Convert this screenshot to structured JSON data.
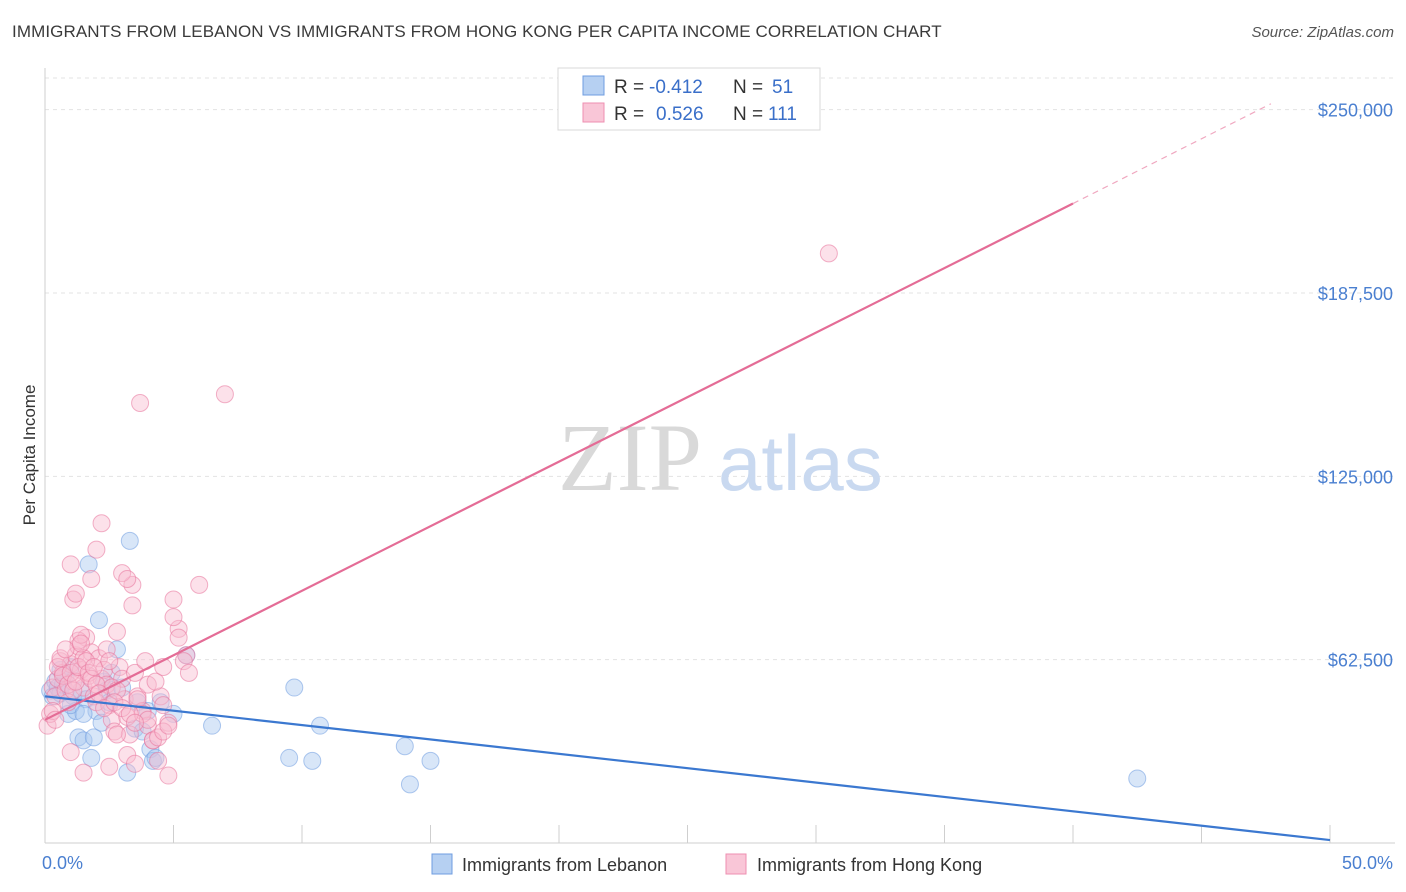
{
  "title": "IMMIGRANTS FROM LEBANON VS IMMIGRANTS FROM HONG KONG PER CAPITA INCOME CORRELATION CHART",
  "source": "Source: ZipAtlas.com",
  "watermark": {
    "zip": "ZIP",
    "atlas": "atlas"
  },
  "legend_top": [
    {
      "r_label": "R =",
      "r_value": "-0.412",
      "n_label": "N =",
      "n_value": "51",
      "color": "#a9c8f0",
      "border": "#6f9de0"
    },
    {
      "r_label": "R =",
      "r_value": "0.526",
      "n_label": "N =",
      "n_value": "111",
      "color": "#f8bcd0",
      "border": "#ee8fb0"
    }
  ],
  "chart_data": {
    "type": "scatter",
    "xlabel": "",
    "ylabel": "Per Capita Income",
    "xlim": [
      0,
      50
    ],
    "ylim": [
      0,
      262500
    ],
    "x_tick_labels": [
      "0.0%",
      "50.0%"
    ],
    "y_ticks": [
      62500,
      125000,
      187500,
      250000
    ],
    "y_tick_labels": [
      "$62,500",
      "$125,000",
      "$187,500",
      "$250,000"
    ],
    "grid": true,
    "series": [
      {
        "name": "Immigrants from Lebanon",
        "color": "#6f9de0",
        "fill": "#a9c8f0",
        "trend": {
          "x": [
            0,
            50
          ],
          "y": [
            50000,
            1000
          ]
        },
        "points": [
          [
            0.2,
            52000
          ],
          [
            0.3,
            50000
          ],
          [
            0.4,
            55000
          ],
          [
            0.5,
            53000
          ],
          [
            0.6,
            51000
          ],
          [
            0.7,
            54000
          ],
          [
            0.8,
            57000
          ],
          [
            0.9,
            44000
          ],
          [
            1.0,
            60000
          ],
          [
            1.1,
            50000
          ],
          [
            1.2,
            45000
          ],
          [
            1.3,
            36000
          ],
          [
            1.4,
            52000
          ],
          [
            1.5,
            35000
          ],
          [
            1.6,
            49000
          ],
          [
            1.7,
            95000
          ],
          [
            1.8,
            29000
          ],
          [
            1.9,
            36000
          ],
          [
            2.0,
            45000
          ],
          [
            2.1,
            76000
          ],
          [
            2.2,
            41000
          ],
          [
            2.3,
            55000
          ],
          [
            2.4,
            52000
          ],
          [
            2.5,
            48000
          ],
          [
            2.8,
            66000
          ],
          [
            3.0,
            53000
          ],
          [
            3.2,
            24000
          ],
          [
            3.3,
            103000
          ],
          [
            3.5,
            39000
          ],
          [
            3.6,
            48000
          ],
          [
            4.0,
            45000
          ],
          [
            4.1,
            32000
          ],
          [
            4.2,
            28000
          ],
          [
            4.3,
            29000
          ],
          [
            4.5,
            48000
          ],
          [
            5.0,
            44000
          ],
          [
            5.5,
            64000
          ],
          [
            6.5,
            40000
          ],
          [
            9.5,
            29000
          ],
          [
            9.7,
            53000
          ],
          [
            10.4,
            28000
          ],
          [
            10.7,
            40000
          ],
          [
            14.0,
            33000
          ],
          [
            14.2,
            20000
          ],
          [
            15.0,
            28000
          ],
          [
            42.5,
            22000
          ],
          [
            0.6,
            59000
          ],
          [
            1.0,
            47000
          ],
          [
            1.5,
            44000
          ],
          [
            2.6,
            58000
          ],
          [
            3.8,
            38000
          ]
        ]
      },
      {
        "name": "Immigrants from Hong Kong",
        "color": "#e8739a",
        "fill": "#f8bcd0",
        "trend": {
          "x": [
            0,
            40
          ],
          "y": [
            42000,
            218000
          ]
        },
        "trend_dashed": {
          "x": [
            40,
            47.7
          ],
          "y": [
            218000,
            252000
          ]
        },
        "points": [
          [
            0.1,
            40000
          ],
          [
            0.2,
            44000
          ],
          [
            0.3,
            53000
          ],
          [
            0.4,
            50000
          ],
          [
            0.5,
            56000
          ],
          [
            0.6,
            62000
          ],
          [
            0.7,
            58000
          ],
          [
            0.8,
            52000
          ],
          [
            0.9,
            48000
          ],
          [
            1.0,
            61000
          ],
          [
            1.1,
            55000
          ],
          [
            1.2,
            64000
          ],
          [
            1.3,
            67000
          ],
          [
            1.4,
            59000
          ],
          [
            1.5,
            53000
          ],
          [
            1.6,
            70000
          ],
          [
            1.7,
            57000
          ],
          [
            1.8,
            65000
          ],
          [
            1.9,
            50000
          ],
          [
            2.0,
            48000
          ],
          [
            2.1,
            63000
          ],
          [
            2.2,
            56000
          ],
          [
            2.3,
            59000
          ],
          [
            2.4,
            54000
          ],
          [
            2.5,
            47000
          ],
          [
            2.6,
            42000
          ],
          [
            2.7,
            38000
          ],
          [
            2.8,
            72000
          ],
          [
            2.9,
            60000
          ],
          [
            3.0,
            56000
          ],
          [
            3.1,
            49000
          ],
          [
            3.2,
            43000
          ],
          [
            3.3,
            37000
          ],
          [
            3.4,
            88000
          ],
          [
            3.5,
            58000
          ],
          [
            3.6,
            50000
          ],
          [
            3.7,
            150000
          ],
          [
            3.8,
            45000
          ],
          [
            3.9,
            62000
          ],
          [
            4.0,
            40000
          ],
          [
            4.2,
            35000
          ],
          [
            4.4,
            28000
          ],
          [
            4.5,
            50000
          ],
          [
            4.6,
            47000
          ],
          [
            4.8,
            41000
          ],
          [
            5.0,
            83000
          ],
          [
            5.2,
            73000
          ],
          [
            5.5,
            64000
          ],
          [
            6.0,
            88000
          ],
          [
            7.0,
            153000
          ],
          [
            1.0,
            95000
          ],
          [
            1.1,
            83000
          ],
          [
            1.2,
            85000
          ],
          [
            1.3,
            69000
          ],
          [
            1.4,
            71000
          ],
          [
            1.5,
            63000
          ],
          [
            1.8,
            90000
          ],
          [
            2.0,
            100000
          ],
          [
            2.2,
            109000
          ],
          [
            2.4,
            66000
          ],
          [
            2.6,
            53000
          ],
          [
            2.8,
            52000
          ],
          [
            3.0,
            92000
          ],
          [
            3.2,
            90000
          ],
          [
            3.4,
            81000
          ],
          [
            3.6,
            49000
          ],
          [
            3.8,
            44000
          ],
          [
            4.0,
            42000
          ],
          [
            4.2,
            35000
          ],
          [
            4.4,
            36000
          ],
          [
            4.6,
            38000
          ],
          [
            4.8,
            40000
          ],
          [
            5.0,
            77000
          ],
          [
            5.2,
            70000
          ],
          [
            5.4,
            62000
          ],
          [
            5.6,
            58000
          ],
          [
            1.0,
            31000
          ],
          [
            1.5,
            24000
          ],
          [
            2.5,
            26000
          ],
          [
            2.8,
            37000
          ],
          [
            3.2,
            30000
          ],
          [
            3.5,
            27000
          ],
          [
            4.8,
            23000
          ],
          [
            0.3,
            45000
          ],
          [
            0.4,
            42000
          ],
          [
            0.5,
            60000
          ],
          [
            0.6,
            63000
          ],
          [
            0.7,
            57000
          ],
          [
            0.8,
            66000
          ],
          [
            0.9,
            54000
          ],
          [
            1.0,
            58000
          ],
          [
            1.1,
            52000
          ],
          [
            1.2,
            55000
          ],
          [
            1.3,
            60000
          ],
          [
            1.4,
            68000
          ],
          [
            1.6,
            62000
          ],
          [
            1.7,
            58000
          ],
          [
            1.8,
            56000
          ],
          [
            1.9,
            60000
          ],
          [
            2.0,
            54000
          ],
          [
            2.1,
            51000
          ],
          [
            2.3,
            46000
          ],
          [
            2.5,
            62000
          ],
          [
            2.7,
            48000
          ],
          [
            3.0,
            46000
          ],
          [
            3.3,
            44000
          ],
          [
            3.5,
            41000
          ],
          [
            4.0,
            54000
          ],
          [
            4.3,
            55000
          ],
          [
            4.6,
            60000
          ],
          [
            30.5,
            201000
          ]
        ]
      }
    ]
  }
}
